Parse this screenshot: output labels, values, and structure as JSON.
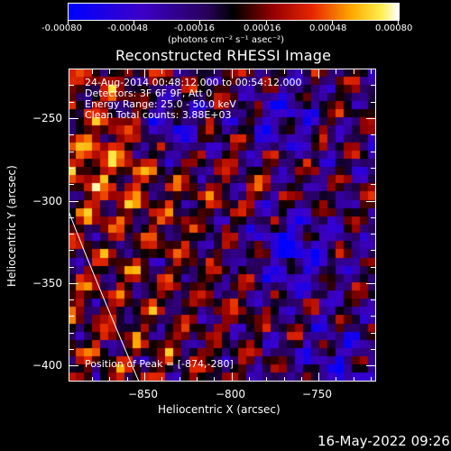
{
  "colorbar": {
    "tick_labels": [
      "-0.00080",
      "-0.00048",
      "-0.00016",
      "0.00016",
      "0.00048",
      "0.00080"
    ],
    "unit_label": "(photons cm⁻² s⁻¹ asec⁻²)",
    "range": [
      -0.0008,
      0.0008
    ]
  },
  "plot": {
    "title": "Reconstructed RHESSI Image",
    "info_lines": [
      "24-Aug-2014 00:48:12.000 to 00:54:12.000",
      "Detectors: 3F 6F 9F, Att 0",
      "Energy Range: 25.0 - 50.0 keV",
      "Clean    Total counts: 3.88E+03"
    ],
    "peak_text": "Position of Peak = [-874,-280]"
  },
  "axes": {
    "xlabel": "Heliocentric X (arcsec)",
    "ylabel": "Heliocentric Y (arcsec)",
    "x_ticks": [
      "−850",
      "−800",
      "−750"
    ],
    "y_ticks": [
      "−250",
      "−300",
      "−350",
      "−400"
    ],
    "xlim": [
      -895,
      -715
    ],
    "ylim": [
      -410,
      -230
    ]
  },
  "footer": {
    "timestamp": "16-May-2022 09:26"
  }
}
